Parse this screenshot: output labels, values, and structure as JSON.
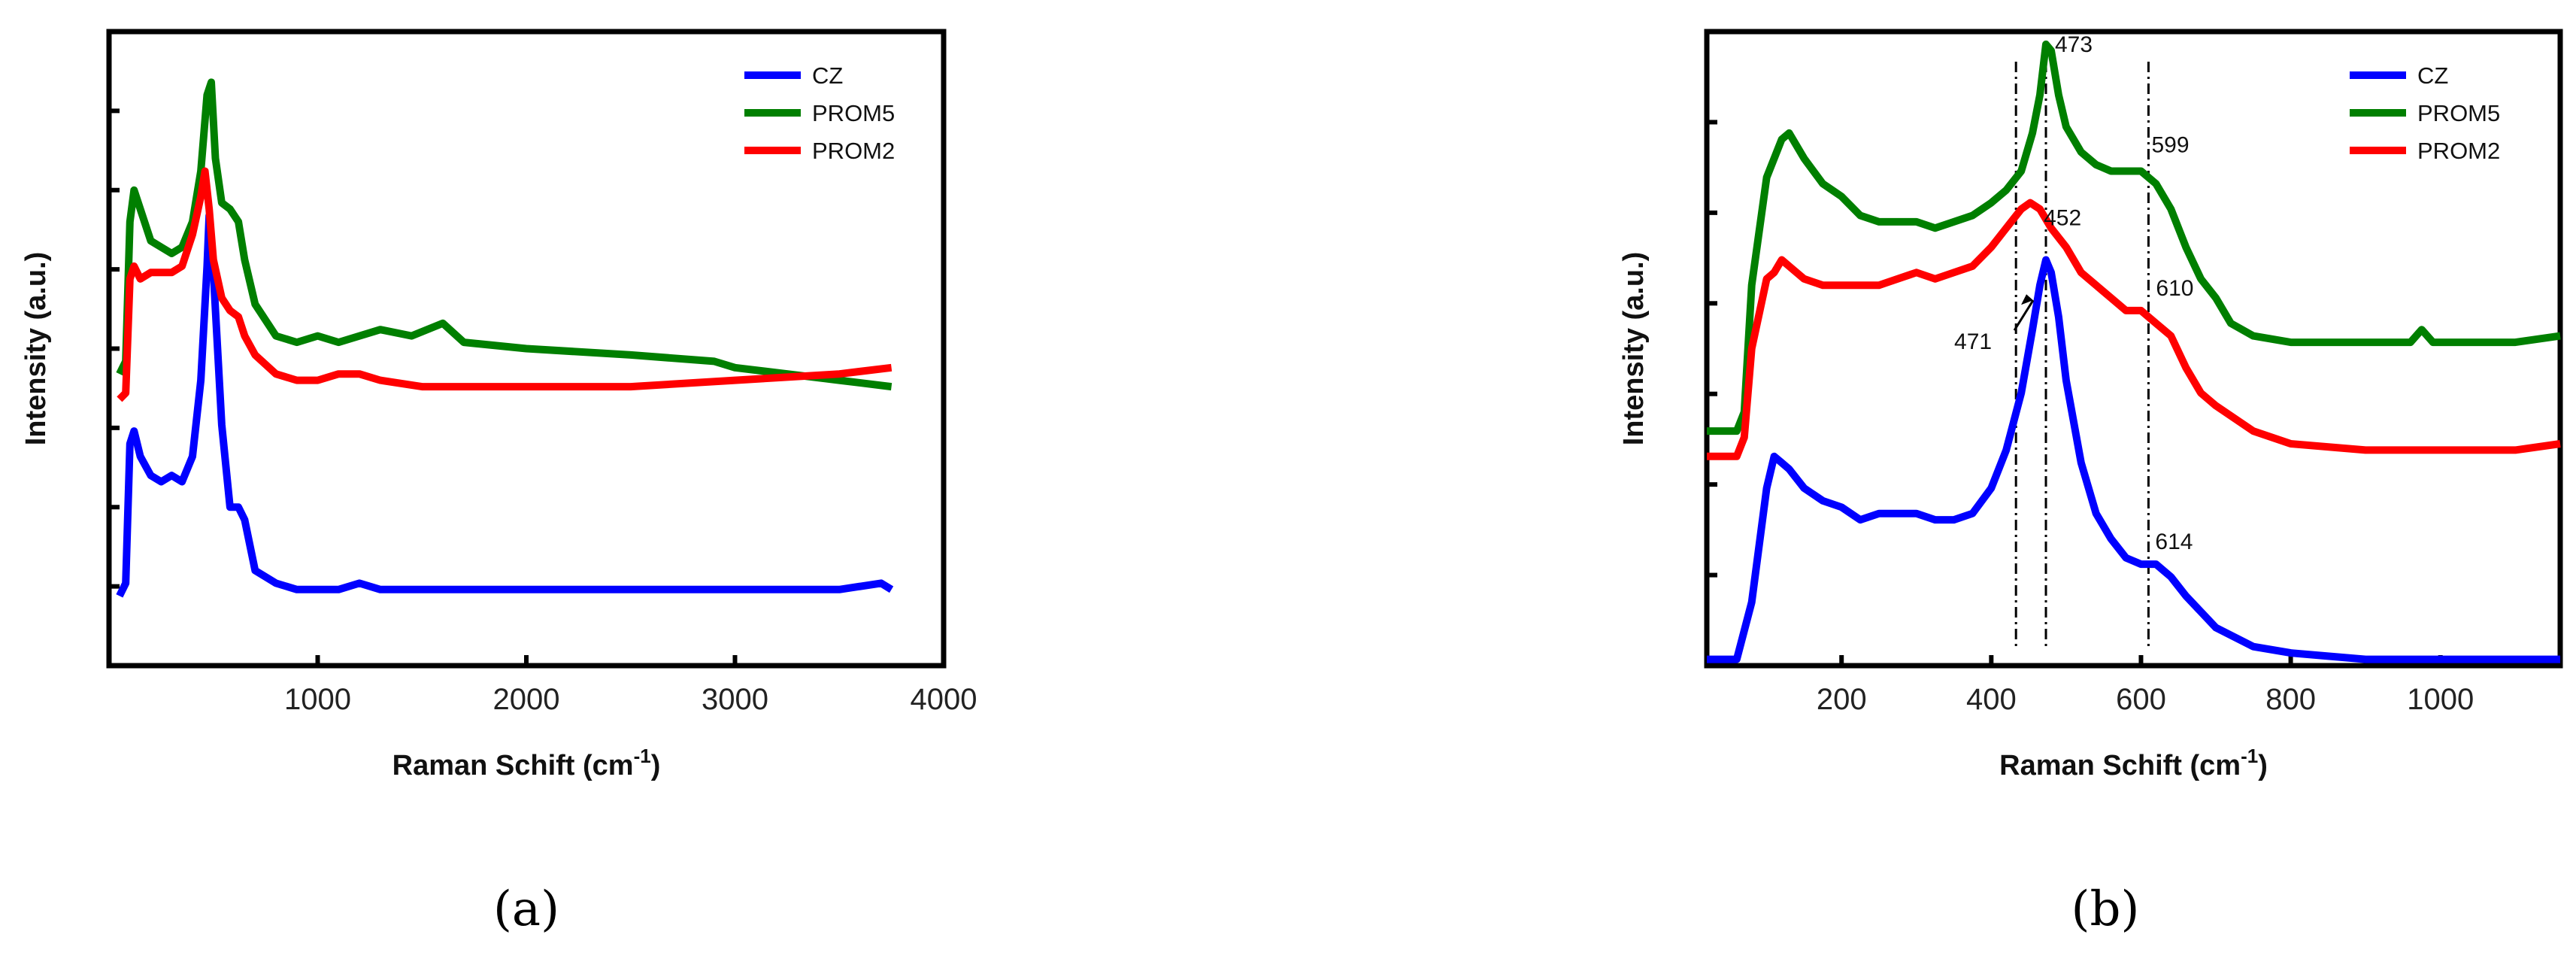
{
  "chart_data": [
    {
      "panel_label": "(a)",
      "type": "line",
      "xlabel": "Raman Schift (cm",
      "xlabel_sup": "-1",
      "xlabel_end": ")",
      "ylabel": "Intensity (a.u.)",
      "xlim": [
        0,
        4000
      ],
      "ylim": [
        0,
        1
      ],
      "xticks": [
        "1000",
        "2000",
        "3000",
        "4000"
      ],
      "y_tick_labels_shown": false,
      "legend_position": "top-right",
      "series": [
        {
          "name": "CZ",
          "color": "#0000ff",
          "points": [
            [
              50,
              0.11
            ],
            [
              80,
              0.13
            ],
            [
              100,
              0.35
            ],
            [
              120,
              0.37
            ],
            [
              150,
              0.33
            ],
            [
              200,
              0.3
            ],
            [
              250,
              0.29
            ],
            [
              300,
              0.3
            ],
            [
              350,
              0.29
            ],
            [
              400,
              0.33
            ],
            [
              440,
              0.45
            ],
            [
              470,
              0.63
            ],
            [
              480,
              0.71
            ],
            [
              500,
              0.62
            ],
            [
              540,
              0.38
            ],
            [
              580,
              0.25
            ],
            [
              620,
              0.25
            ],
            [
              650,
              0.23
            ],
            [
              700,
              0.15
            ],
            [
              800,
              0.13
            ],
            [
              900,
              0.12
            ],
            [
              1000,
              0.12
            ],
            [
              1100,
              0.12
            ],
            [
              1200,
              0.13
            ],
            [
              1300,
              0.12
            ],
            [
              1500,
              0.12
            ],
            [
              2000,
              0.12
            ],
            [
              2500,
              0.12
            ],
            [
              3000,
              0.12
            ],
            [
              3500,
              0.12
            ],
            [
              3700,
              0.13
            ],
            [
              3750,
              0.12
            ]
          ]
        },
        {
          "name": "PROM5",
          "color": "#007f00",
          "points": [
            [
              50,
              0.46
            ],
            [
              80,
              0.48
            ],
            [
              100,
              0.7
            ],
            [
              120,
              0.75
            ],
            [
              150,
              0.72
            ],
            [
              200,
              0.67
            ],
            [
              250,
              0.66
            ],
            [
              300,
              0.65
            ],
            [
              350,
              0.66
            ],
            [
              400,
              0.7
            ],
            [
              440,
              0.78
            ],
            [
              470,
              0.9
            ],
            [
              490,
              0.92
            ],
            [
              510,
              0.8
            ],
            [
              540,
              0.73
            ],
            [
              580,
              0.72
            ],
            [
              620,
              0.7
            ],
            [
              650,
              0.64
            ],
            [
              700,
              0.57
            ],
            [
              800,
              0.52
            ],
            [
              900,
              0.51
            ],
            [
              1000,
              0.52
            ],
            [
              1100,
              0.51
            ],
            [
              1300,
              0.53
            ],
            [
              1450,
              0.52
            ],
            [
              1600,
              0.54
            ],
            [
              1700,
              0.51
            ],
            [
              2000,
              0.5
            ],
            [
              2500,
              0.49
            ],
            [
              2900,
              0.48
            ],
            [
              3000,
              0.47
            ],
            [
              3500,
              0.45
            ],
            [
              3750,
              0.44
            ]
          ]
        },
        {
          "name": "PROM2",
          "color": "#ff0000",
          "points": [
            [
              50,
              0.42
            ],
            [
              80,
              0.43
            ],
            [
              100,
              0.61
            ],
            [
              120,
              0.63
            ],
            [
              150,
              0.61
            ],
            [
              200,
              0.62
            ],
            [
              250,
              0.62
            ],
            [
              300,
              0.62
            ],
            [
              350,
              0.63
            ],
            [
              400,
              0.68
            ],
            [
              440,
              0.74
            ],
            [
              460,
              0.78
            ],
            [
              480,
              0.72
            ],
            [
              500,
              0.64
            ],
            [
              540,
              0.58
            ],
            [
              580,
              0.56
            ],
            [
              620,
              0.55
            ],
            [
              650,
              0.52
            ],
            [
              700,
              0.49
            ],
            [
              800,
              0.46
            ],
            [
              900,
              0.45
            ],
            [
              1000,
              0.45
            ],
            [
              1100,
              0.46
            ],
            [
              1200,
              0.46
            ],
            [
              1300,
              0.45
            ],
            [
              1500,
              0.44
            ],
            [
              2000,
              0.44
            ],
            [
              2500,
              0.44
            ],
            [
              3000,
              0.45
            ],
            [
              3500,
              0.46
            ],
            [
              3750,
              0.47
            ]
          ]
        }
      ]
    },
    {
      "panel_label": "(b)",
      "type": "line",
      "xlabel": "Raman Schift (cm",
      "xlabel_sup": "-1",
      "xlabel_end": ")",
      "ylabel": "Intensity (a.u.)",
      "xlim": [
        20,
        1160
      ],
      "ylim": [
        0,
        1
      ],
      "xticks": [
        "200",
        "400",
        "600",
        "800",
        "1000"
      ],
      "y_tick_labels_shown": false,
      "legend_position": "top-right",
      "reference_lines_x": [
        433,
        473,
        610
      ],
      "annotations": [
        "473",
        "452",
        "471",
        "599",
        "610",
        "614"
      ],
      "series": [
        {
          "name": "CZ",
          "color": "#0000ff",
          "points": [
            [
              20,
              0.01
            ],
            [
              60,
              0.01
            ],
            [
              80,
              0.1
            ],
            [
              100,
              0.28
            ],
            [
              110,
              0.33
            ],
            [
              120,
              0.32
            ],
            [
              130,
              0.31
            ],
            [
              150,
              0.28
            ],
            [
              175,
              0.26
            ],
            [
              200,
              0.25
            ],
            [
              225,
              0.23
            ],
            [
              250,
              0.24
            ],
            [
              275,
              0.24
            ],
            [
              300,
              0.24
            ],
            [
              325,
              0.23
            ],
            [
              350,
              0.23
            ],
            [
              375,
              0.24
            ],
            [
              400,
              0.28
            ],
            [
              420,
              0.34
            ],
            [
              440,
              0.43
            ],
            [
              455,
              0.53
            ],
            [
              465,
              0.6
            ],
            [
              473,
              0.64
            ],
            [
              480,
              0.62
            ],
            [
              490,
              0.55
            ],
            [
              500,
              0.45
            ],
            [
              520,
              0.32
            ],
            [
              540,
              0.24
            ],
            [
              560,
              0.2
            ],
            [
              580,
              0.17
            ],
            [
              600,
              0.16
            ],
            [
              620,
              0.16
            ],
            [
              640,
              0.14
            ],
            [
              660,
              0.11
            ],
            [
              700,
              0.06
            ],
            [
              750,
              0.03
            ],
            [
              800,
              0.02
            ],
            [
              900,
              0.01
            ],
            [
              1000,
              0.01
            ],
            [
              1100,
              0.01
            ],
            [
              1160,
              0.01
            ]
          ]
        },
        {
          "name": "PROM5",
          "color": "#007f00",
          "points": [
            [
              20,
              0.37
            ],
            [
              60,
              0.37
            ],
            [
              70,
              0.4
            ],
            [
              80,
              0.6
            ],
            [
              100,
              0.77
            ],
            [
              110,
              0.8
            ],
            [
              120,
              0.83
            ],
            [
              130,
              0.84
            ],
            [
              150,
              0.8
            ],
            [
              175,
              0.76
            ],
            [
              200,
              0.74
            ],
            [
              225,
              0.71
            ],
            [
              250,
              0.7
            ],
            [
              275,
              0.7
            ],
            [
              300,
              0.7
            ],
            [
              325,
              0.69
            ],
            [
              350,
              0.7
            ],
            [
              375,
              0.71
            ],
            [
              400,
              0.73
            ],
            [
              420,
              0.75
            ],
            [
              440,
              0.78
            ],
            [
              455,
              0.84
            ],
            [
              465,
              0.9
            ],
            [
              473,
              0.98
            ],
            [
              480,
              0.97
            ],
            [
              490,
              0.9
            ],
            [
              500,
              0.85
            ],
            [
              520,
              0.81
            ],
            [
              540,
              0.79
            ],
            [
              560,
              0.78
            ],
            [
              580,
              0.78
            ],
            [
              600,
              0.78
            ],
            [
              620,
              0.76
            ],
            [
              640,
              0.72
            ],
            [
              660,
              0.66
            ],
            [
              680,
              0.61
            ],
            [
              700,
              0.58
            ],
            [
              720,
              0.54
            ],
            [
              750,
              0.52
            ],
            [
              800,
              0.51
            ],
            [
              900,
              0.51
            ],
            [
              960,
              0.51
            ],
            [
              975,
              0.53
            ],
            [
              990,
              0.51
            ],
            [
              1100,
              0.51
            ],
            [
              1160,
              0.52
            ]
          ]
        },
        {
          "name": "PROM2",
          "color": "#ff0000",
          "points": [
            [
              20,
              0.33
            ],
            [
              60,
              0.33
            ],
            [
              70,
              0.36
            ],
            [
              80,
              0.5
            ],
            [
              100,
              0.61
            ],
            [
              110,
              0.62
            ],
            [
              120,
              0.64
            ],
            [
              130,
              0.63
            ],
            [
              150,
              0.61
            ],
            [
              175,
              0.6
            ],
            [
              200,
              0.6
            ],
            [
              225,
              0.6
            ],
            [
              250,
              0.6
            ],
            [
              275,
              0.61
            ],
            [
              300,
              0.62
            ],
            [
              325,
              0.61
            ],
            [
              350,
              0.62
            ],
            [
              375,
              0.63
            ],
            [
              400,
              0.66
            ],
            [
              420,
              0.69
            ],
            [
              440,
              0.72
            ],
            [
              452,
              0.73
            ],
            [
              465,
              0.72
            ],
            [
              480,
              0.69
            ],
            [
              500,
              0.66
            ],
            [
              520,
              0.62
            ],
            [
              540,
              0.6
            ],
            [
              560,
              0.58
            ],
            [
              580,
              0.56
            ],
            [
              600,
              0.56
            ],
            [
              620,
              0.54
            ],
            [
              640,
              0.52
            ],
            [
              660,
              0.47
            ],
            [
              680,
              0.43
            ],
            [
              700,
              0.41
            ],
            [
              750,
              0.37
            ],
            [
              800,
              0.35
            ],
            [
              900,
              0.34
            ],
            [
              1000,
              0.34
            ],
            [
              1100,
              0.34
            ],
            [
              1160,
              0.35
            ]
          ]
        }
      ]
    }
  ]
}
